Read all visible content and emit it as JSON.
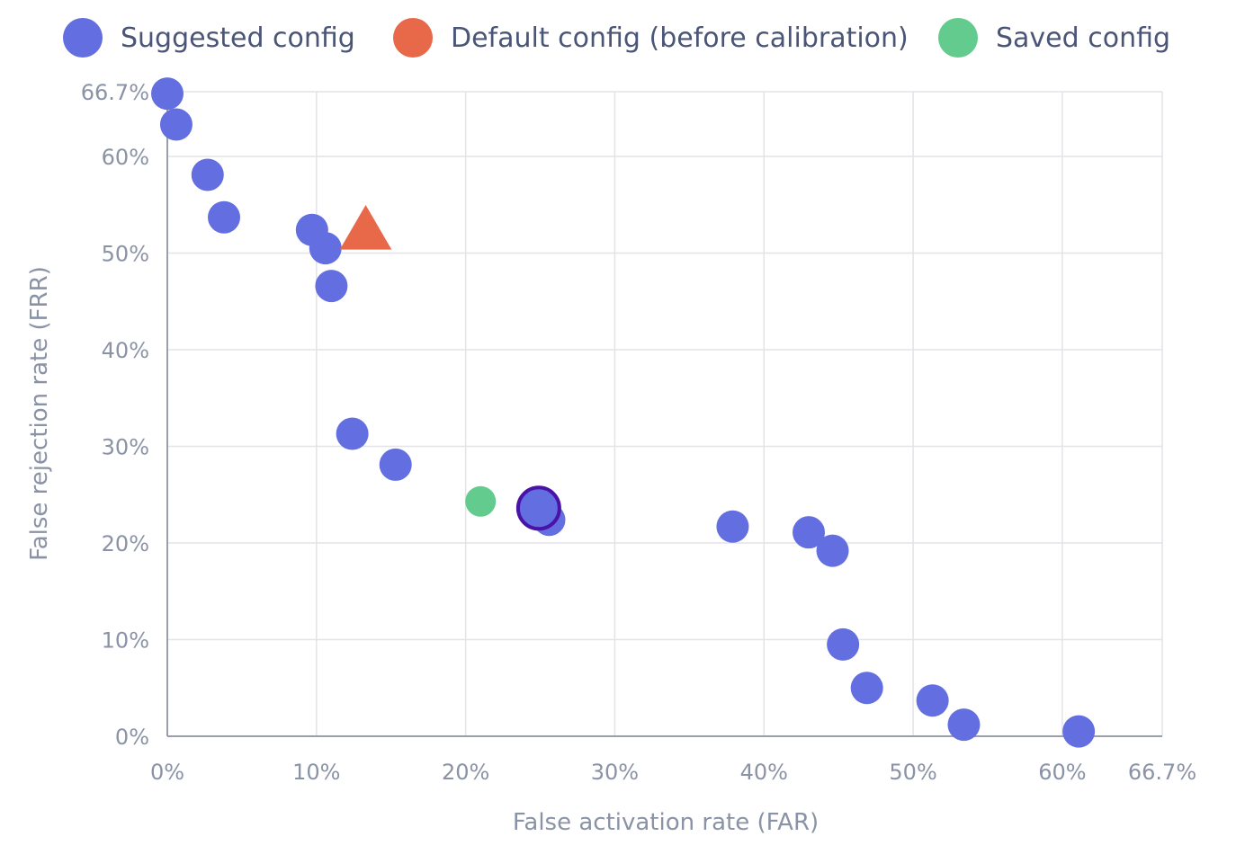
{
  "chart_data": {
    "type": "scatter",
    "title": "",
    "xlabel": "False activation rate (FAR)",
    "ylabel": "False rejection rate (FRR)",
    "xlim": [
      0,
      66.7
    ],
    "ylim": [
      0,
      66.7
    ],
    "x_ticks": [
      {
        "value": 0,
        "label": "0%"
      },
      {
        "value": 10,
        "label": "10%"
      },
      {
        "value": 20,
        "label": "20%"
      },
      {
        "value": 30,
        "label": "30%"
      },
      {
        "value": 40,
        "label": "40%"
      },
      {
        "value": 50,
        "label": "50%"
      },
      {
        "value": 60,
        "label": "60%"
      },
      {
        "value": 66.7,
        "label": "66.7%"
      }
    ],
    "y_ticks": [
      {
        "value": 0,
        "label": "0%"
      },
      {
        "value": 10,
        "label": "10%"
      },
      {
        "value": 20,
        "label": "20%"
      },
      {
        "value": 30,
        "label": "30%"
      },
      {
        "value": 40,
        "label": "40%"
      },
      {
        "value": 50,
        "label": "50%"
      },
      {
        "value": 60,
        "label": "60%"
      },
      {
        "value": 66.7,
        "label": "66.7%"
      }
    ],
    "grid": true,
    "legend_position": "top",
    "series": [
      {
        "name": "Suggested config",
        "marker": "circle",
        "color": "#636ee0",
        "points": [
          {
            "x": 0.0,
            "y": 66.5
          },
          {
            "x": 0.6,
            "y": 63.3
          },
          {
            "x": 2.7,
            "y": 58.1
          },
          {
            "x": 3.8,
            "y": 53.7
          },
          {
            "x": 9.7,
            "y": 52.4
          },
          {
            "x": 10.6,
            "y": 50.5
          },
          {
            "x": 11.0,
            "y": 46.6
          },
          {
            "x": 12.4,
            "y": 31.3
          },
          {
            "x": 15.3,
            "y": 28.1
          },
          {
            "x": 25.6,
            "y": 22.4
          },
          {
            "x": 37.9,
            "y": 21.7
          },
          {
            "x": 43.0,
            "y": 21.1
          },
          {
            "x": 44.6,
            "y": 19.2
          },
          {
            "x": 45.3,
            "y": 9.5
          },
          {
            "x": 46.9,
            "y": 5.0
          },
          {
            "x": 51.3,
            "y": 3.7
          },
          {
            "x": 53.4,
            "y": 1.2
          },
          {
            "x": 61.1,
            "y": 0.5
          }
        ]
      },
      {
        "name": "Default config (before calibration)",
        "marker": "triangle",
        "color": "#e8694a",
        "points": [
          {
            "x": 13.3,
            "y": 52.0
          }
        ]
      },
      {
        "name": "Saved config",
        "marker": "circle",
        "color": "#63cb8d",
        "points": [
          {
            "x": 21.0,
            "y": 24.3
          }
        ]
      }
    ],
    "selected_point": {
      "x": 24.9,
      "y": 23.6,
      "color": "#636ee0",
      "outline_color": "#4a13a8"
    }
  }
}
